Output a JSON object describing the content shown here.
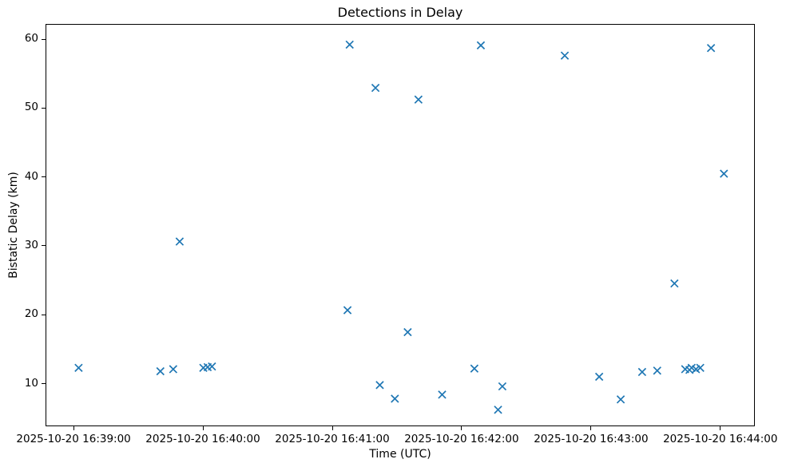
{
  "chart_data": {
    "type": "scatter",
    "title": "Detections in Delay",
    "xlabel": "Time (UTC)",
    "ylabel": "Bistatic Delay (km)",
    "grid": false,
    "legend": "none",
    "marker": "x",
    "marker_color": "#1f77b4",
    "axis_color": "#000000",
    "x_tick_labels": [
      "2025-10-20 16:39:00",
      "2025-10-20 16:40:00",
      "2025-10-20 16:41:00",
      "2025-10-20 16:42:00",
      "2025-10-20 16:43:00",
      "2025-10-20 16:44:00"
    ],
    "y_tick_labels": [
      10,
      20,
      30,
      40,
      50,
      60
    ],
    "xlim": [
      "2025-10-20 16:38:47",
      "2025-10-20 16:44:16"
    ],
    "ylim": [
      3.8,
      62.2
    ],
    "points": [
      {
        "time": "2025-10-20 16:39:02",
        "delay_km": 12.2
      },
      {
        "time": "2025-10-20 16:39:40",
        "delay_km": 11.7
      },
      {
        "time": "2025-10-20 16:39:46",
        "delay_km": 12.0
      },
      {
        "time": "2025-10-20 16:39:49",
        "delay_km": 30.6
      },
      {
        "time": "2025-10-20 16:40:00",
        "delay_km": 12.2
      },
      {
        "time": "2025-10-20 16:40:02",
        "delay_km": 12.3
      },
      {
        "time": "2025-10-20 16:40:04",
        "delay_km": 12.4
      },
      {
        "time": "2025-10-20 16:41:07",
        "delay_km": 20.6
      },
      {
        "time": "2025-10-20 16:41:08",
        "delay_km": 59.3
      },
      {
        "time": "2025-10-20 16:41:20",
        "delay_km": 53.0
      },
      {
        "time": "2025-10-20 16:41:22",
        "delay_km": 9.7
      },
      {
        "time": "2025-10-20 16:41:29",
        "delay_km": 7.7
      },
      {
        "time": "2025-10-20 16:41:35",
        "delay_km": 17.4
      },
      {
        "time": "2025-10-20 16:41:40",
        "delay_km": 51.3
      },
      {
        "time": "2025-10-20 16:41:51",
        "delay_km": 8.3
      },
      {
        "time": "2025-10-20 16:42:06",
        "delay_km": 12.1
      },
      {
        "time": "2025-10-20 16:42:09",
        "delay_km": 59.2
      },
      {
        "time": "2025-10-20 16:42:17",
        "delay_km": 6.1
      },
      {
        "time": "2025-10-20 16:42:19",
        "delay_km": 9.5
      },
      {
        "time": "2025-10-20 16:42:48",
        "delay_km": 57.7
      },
      {
        "time": "2025-10-20 16:43:04",
        "delay_km": 10.9
      },
      {
        "time": "2025-10-20 16:43:14",
        "delay_km": 7.6
      },
      {
        "time": "2025-10-20 16:43:24",
        "delay_km": 11.6
      },
      {
        "time": "2025-10-20 16:43:31",
        "delay_km": 11.8
      },
      {
        "time": "2025-10-20 16:43:39",
        "delay_km": 24.5
      },
      {
        "time": "2025-10-20 16:43:44",
        "delay_km": 12.0
      },
      {
        "time": "2025-10-20 16:43:46",
        "delay_km": 11.9
      },
      {
        "time": "2025-10-20 16:43:47",
        "delay_km": 12.2
      },
      {
        "time": "2025-10-20 16:43:49",
        "delay_km": 12.0
      },
      {
        "time": "2025-10-20 16:43:51",
        "delay_km": 12.2
      },
      {
        "time": "2025-10-20 16:43:56",
        "delay_km": 58.8
      },
      {
        "time": "2025-10-20 16:44:02",
        "delay_km": 40.5
      }
    ]
  }
}
